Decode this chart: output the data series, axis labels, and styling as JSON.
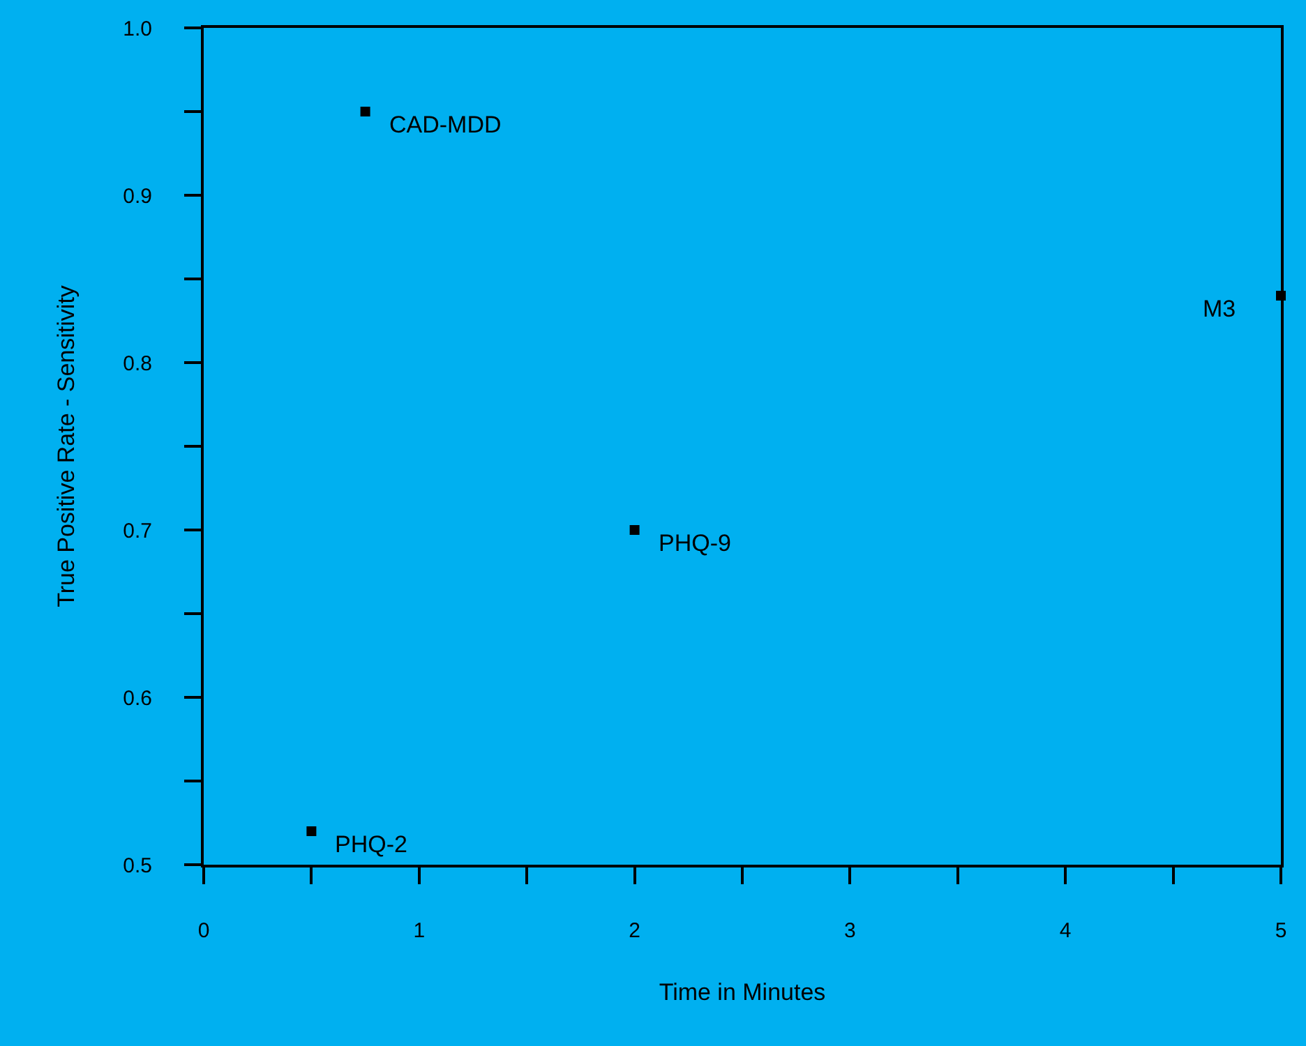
{
  "chart_data": {
    "type": "scatter",
    "xlabel": "Time in Minutes",
    "ylabel": "True Positive Rate - Sensitivity",
    "x": [
      0.75,
      2,
      0.5,
      5
    ],
    "values": [
      0.95,
      0.7,
      0.52,
      0.84
    ],
    "color": "#000000",
    "xlim": [
      0,
      5
    ],
    "ylim": [
      0.5,
      1.0
    ],
    "xticks": [
      0,
      {
        "value": 0.5,
        "label": null
      },
      1,
      {
        "value": 1.5,
        "label": null
      },
      2,
      {
        "value": 2.5,
        "label": null
      },
      3,
      {
        "value": 3.5,
        "label": null
      },
      4,
      {
        "value": 4.5,
        "label": null
      },
      5
    ],
    "yticks": [
      {
        "value": 0.5,
        "label": "0.5"
      },
      {
        "value": 0.55,
        "label": null
      },
      {
        "value": 0.6,
        "label": "0.6"
      },
      {
        "value": 0.65,
        "label": null
      },
      {
        "value": 0.7,
        "label": "0.7"
      },
      {
        "value": 0.75,
        "label": null
      },
      {
        "value": 0.8,
        "label": "0.8"
      },
      {
        "value": 0.85,
        "label": null
      },
      {
        "value": 0.9,
        "label": "0.9"
      },
      {
        "value": 0.95,
        "label": null
      },
      {
        "value": 1.0,
        "label": "1.0"
      }
    ],
    "annotations": [
      {
        "text": "CAD-MDD",
        "x": 0.75,
        "y": 0.95
      },
      {
        "text": "PHQ-9",
        "x": 2,
        "y": 0.7
      },
      {
        "text": "PHQ-2",
        "x": 0.5,
        "y": 0.52
      },
      {
        "text": "M3",
        "x": 5,
        "y": 0.84
      }
    ],
    "marker": "square",
    "grid": false
  }
}
